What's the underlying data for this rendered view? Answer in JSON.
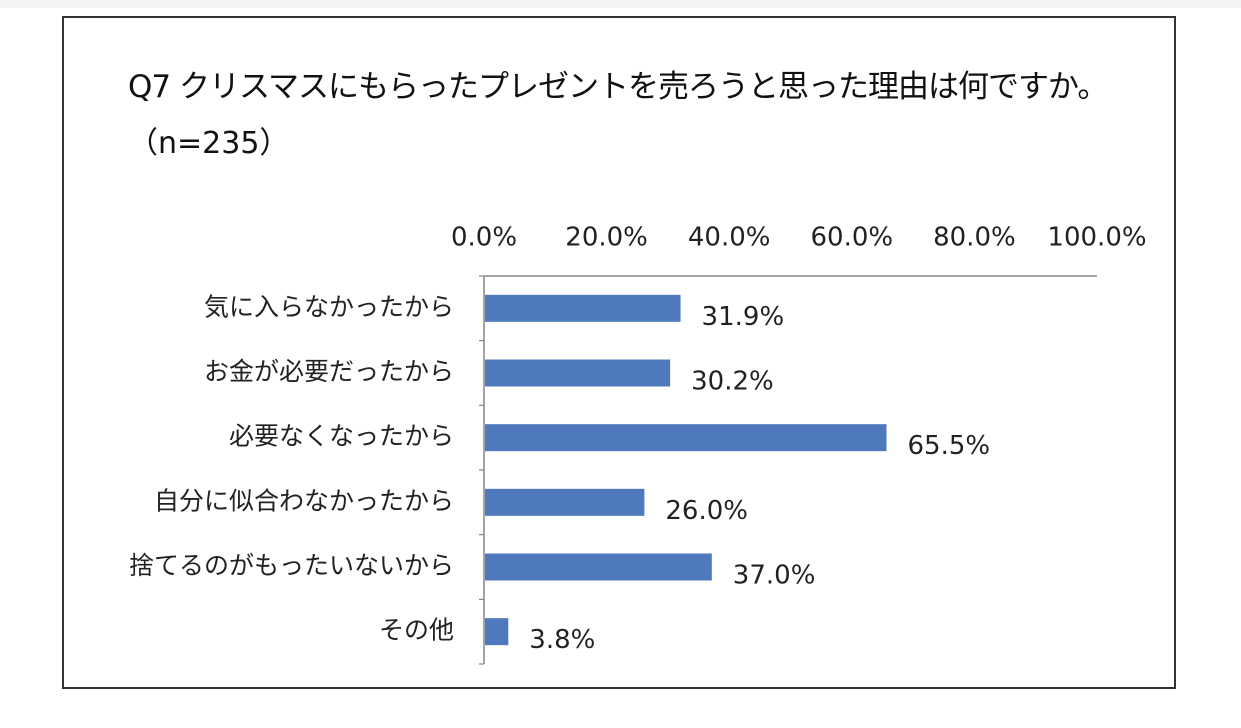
{
  "chart_data": {
    "type": "bar",
    "orientation": "horizontal",
    "title": "Q7 クリスマスにもらったプレゼントを売ろうと思った理由は何ですか。",
    "subtitle": "（n=235）",
    "categories": [
      "気に入らなかったから",
      "お金が必要だったから",
      "必要なくなったから",
      "自分に似合わなかったから",
      "捨てるのがもったいないから",
      "その他"
    ],
    "values": [
      31.9,
      30.2,
      65.5,
      26.0,
      37.0,
      3.8
    ],
    "data_labels": [
      "31.9%",
      "30.2%",
      "65.5%",
      "26.0%",
      "37.0%",
      "3.8%"
    ],
    "x_ticks": [
      0,
      20,
      40,
      60,
      80,
      100
    ],
    "x_tick_labels": [
      "0.0%",
      "20.0%",
      "40.0%",
      "60.0%",
      "80.0%",
      "100.0%"
    ],
    "xlim": [
      0,
      100
    ],
    "x_axis_position": "top",
    "grid": false,
    "legend": "none",
    "bar_color": "#4f79bd",
    "axis_color": "#868686"
  }
}
